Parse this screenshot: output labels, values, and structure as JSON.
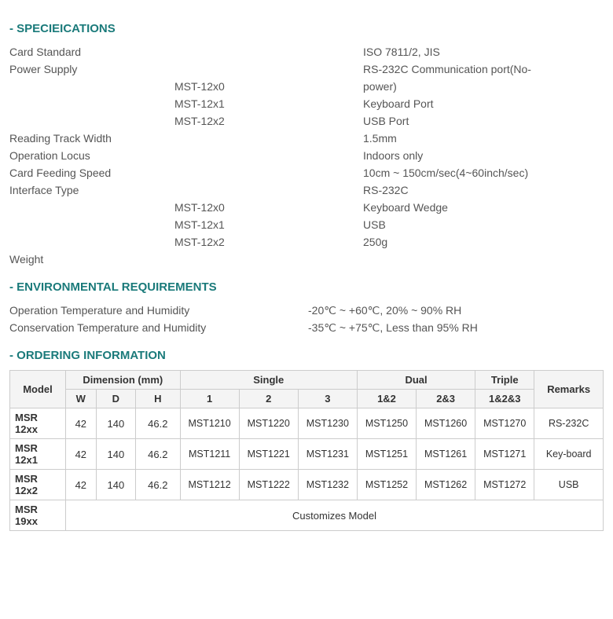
{
  "headings": {
    "specs": "- SPECIEICATIONS",
    "env": "- ENVIRONMENTAL REQUIREMENTS",
    "order": "- ORDERING INFORMATION"
  },
  "spec": {
    "col1": [
      "Card Standard",
      "Power Supply",
      "",
      "",
      "",
      "Reading Track Width",
      "Operation Locus",
      "Card Feeding Speed",
      "Interface Type",
      "",
      "",
      "",
      "Weight"
    ],
    "col2": [
      "",
      "",
      "MST-12x0",
      "MST-12x1",
      "MST-12x2",
      "",
      "",
      "",
      "",
      "MST-12x0",
      "MST-12x1",
      "MST-12x2",
      ""
    ],
    "col3": [
      "ISO 7811/2, JIS",
      "RS-232C Communication port(No-",
      "power)",
      "Keyboard Port",
      "USB Port",
      "1.5mm",
      "Indoors only",
      "10cm ~ 150cm/sec(4~60inch/sec)",
      "RS-232C",
      "Keyboard Wedge",
      "USB",
      "250g",
      ""
    ]
  },
  "env": {
    "row1_label": "Operation Temperature and Humidity",
    "row1_val": "-20℃ ~ +60℃, 20% ~ 90% RH",
    "row2_label": "Conservation  Temperature and Humidity",
    "row2_val": "-35℃ ~ +75℃, Less than 95% RH"
  },
  "order": {
    "header_model": "Model",
    "header_dim": "Dimension (mm)",
    "header_single": "Single",
    "header_dual": "Dual",
    "header_triple": "Triple",
    "header_remarks": "Remarks",
    "sub_w": "W",
    "sub_d": "D",
    "sub_h": "H",
    "sub_1": "1",
    "sub_2": "2",
    "sub_3": "3",
    "sub_12": "1&2",
    "sub_23": "2&3",
    "sub_123": "1&2&3",
    "rows": [
      {
        "model": "MSR 12xx",
        "w": "42",
        "d": "140",
        "h": "46.2",
        "c1": "MST1210",
        "c2": "MST1220",
        "c3": "MST1230",
        "d1": "MST1250",
        "d2": "MST1260",
        "t1": "MST1270",
        "remarks": "RS-232C"
      },
      {
        "model": "MSR 12x1",
        "w": "42",
        "d": "140",
        "h": "46.2",
        "c1": "MST1211",
        "c2": "MST1221",
        "c3": "MST1231",
        "d1": "MST1251",
        "d2": "MST1261",
        "t1": "MST1271",
        "remarks": "Key-board"
      },
      {
        "model": "MSR 12x2",
        "w": "42",
        "d": "140",
        "h": "46.2",
        "c1": "MST1212",
        "c2": "MST1222",
        "c3": "MST1232",
        "d1": "MST1252",
        "d2": "MST1262",
        "t1": "MST1272",
        "remarks": "USB"
      }
    ],
    "custom_model": "MSR 19xx",
    "custom_text": "Customizes Model"
  }
}
